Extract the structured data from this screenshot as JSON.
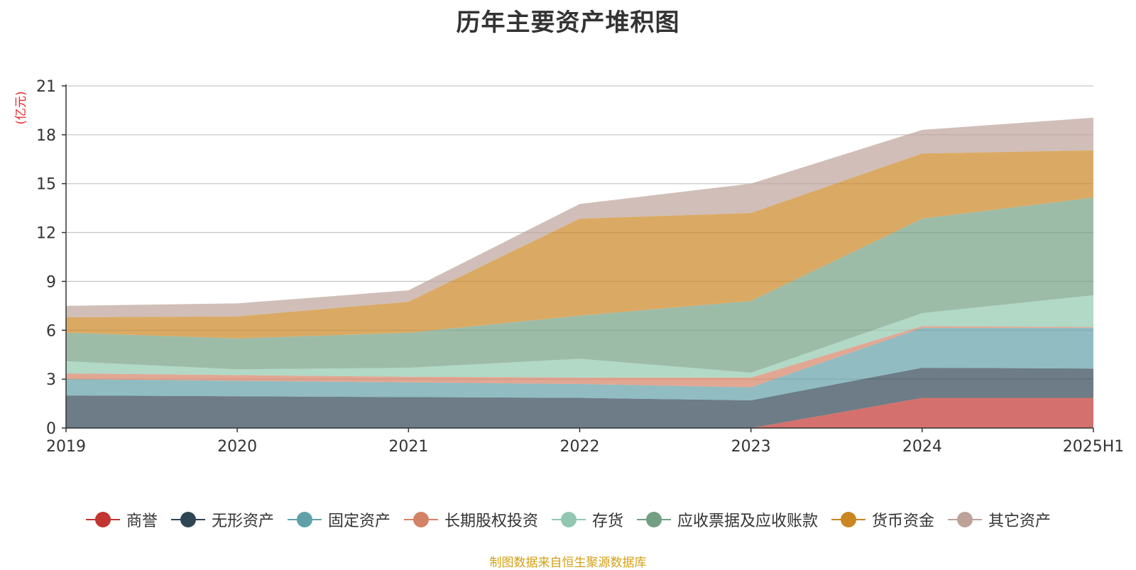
{
  "title": "历年主要资产堆积图",
  "unit_label": "(亿元)",
  "source": "制图数据来自恒生聚源数据库",
  "chart_data": {
    "type": "area",
    "stacked": true,
    "title": "历年主要资产堆积图",
    "ylabel": "(亿元)",
    "ylim": [
      0,
      21
    ],
    "yticks": [
      0,
      3,
      6,
      9,
      12,
      15,
      18,
      21
    ],
    "grid": true,
    "legend_position": "bottom",
    "categories": [
      "2019",
      "2020",
      "2021",
      "2022",
      "2023",
      "2024",
      "2025H1"
    ],
    "series": [
      {
        "name": "商誉",
        "color": "#c23531",
        "values": [
          0,
          0,
          0,
          0,
          0,
          1.85,
          1.85
        ]
      },
      {
        "name": "无形资产",
        "color": "#2f4554",
        "values": [
          2.0,
          1.95,
          1.9,
          1.85,
          1.7,
          1.85,
          1.8
        ]
      },
      {
        "name": "固定资产",
        "color": "#61a0a8",
        "values": [
          1.0,
          0.95,
          0.9,
          0.85,
          0.8,
          2.45,
          2.5
        ]
      },
      {
        "name": "长期股权投资",
        "color": "#d48265",
        "values": [
          0.35,
          0.35,
          0.35,
          0.4,
          0.6,
          0.1,
          0.05
        ]
      },
      {
        "name": "存货",
        "color": "#91c7ae",
        "values": [
          0.75,
          0.35,
          0.55,
          1.15,
          0.3,
          0.8,
          1.95
        ]
      },
      {
        "name": "应收票据及应收账款",
        "color": "#749f83",
        "values": [
          1.75,
          1.9,
          2.15,
          2.65,
          4.4,
          5.8,
          6.0
        ]
      },
      {
        "name": "货币资金",
        "color": "#ca8622",
        "values": [
          0.95,
          1.35,
          1.9,
          5.95,
          5.4,
          4.0,
          2.9
        ]
      },
      {
        "name": "其它资产",
        "color": "#bda29a",
        "values": [
          0.7,
          0.8,
          0.7,
          0.9,
          1.8,
          1.45,
          2.0
        ]
      }
    ]
  }
}
